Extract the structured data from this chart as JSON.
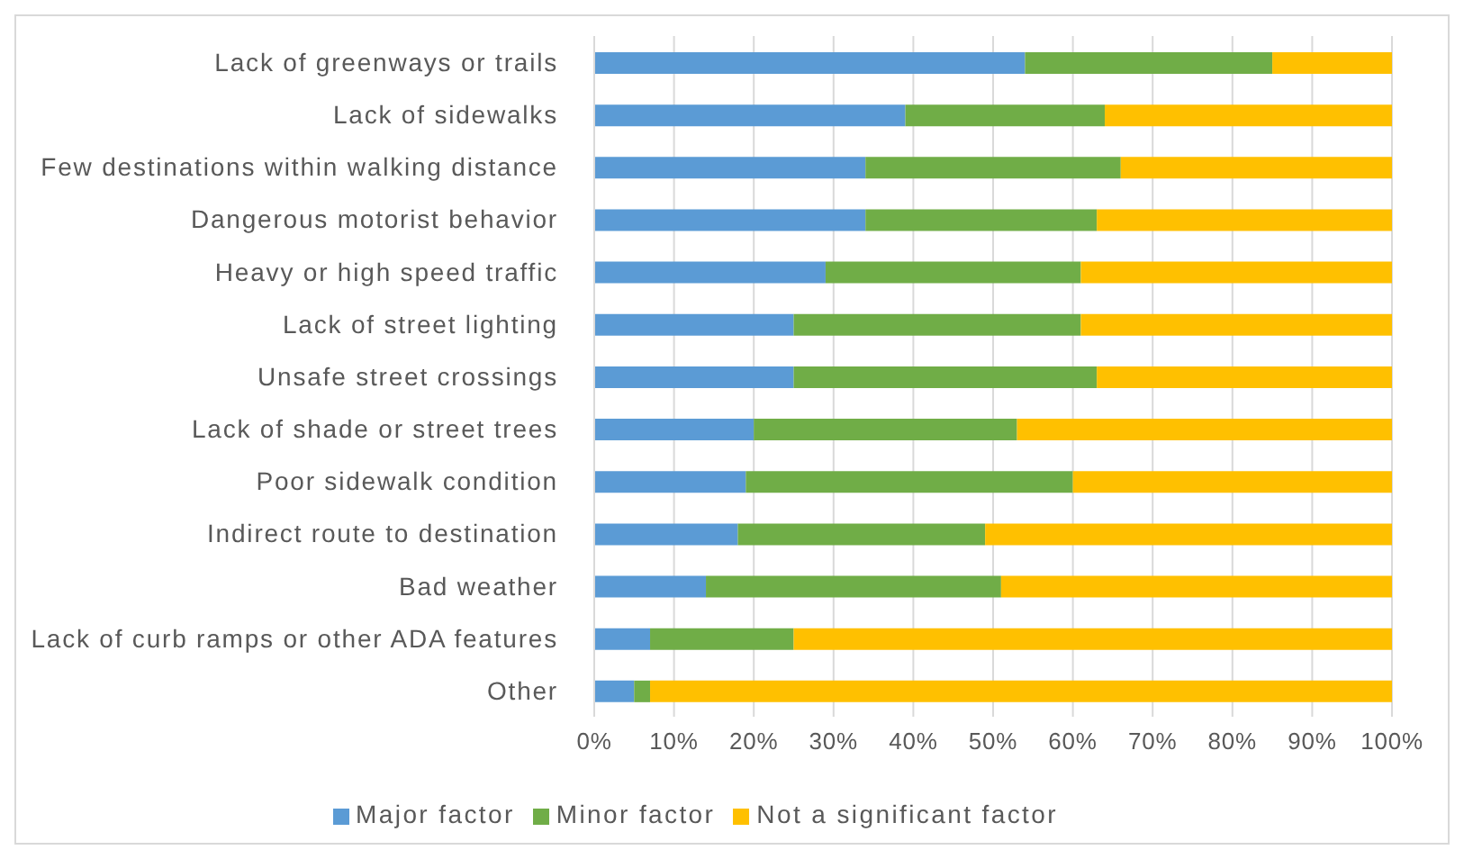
{
  "chart_data": {
    "type": "bar",
    "orientation": "horizontal",
    "stacked": true,
    "categories": [
      "Lack of greenways or trails",
      "Lack of sidewalks",
      "Few destinations within walking distance",
      "Dangerous motorist behavior",
      "Heavy or high speed traffic",
      "Lack of street lighting",
      "Unsafe street crossings",
      "Lack of shade or street trees",
      "Poor sidewalk condition",
      "Indirect route to destination",
      "Bad weather",
      "Lack of curb ramps or other ADA features",
      "Other"
    ],
    "series": [
      {
        "name": "Major factor",
        "color": "#5b9bd5",
        "values": [
          54,
          39,
          34,
          34,
          29,
          25,
          25,
          20,
          19,
          18,
          14,
          7,
          5
        ]
      },
      {
        "name": "Minor factor",
        "color": "#70ad47",
        "values": [
          31,
          25,
          32,
          29,
          32,
          36,
          38,
          33,
          41,
          31,
          37,
          18,
          2
        ]
      },
      {
        "name": "Not a significant factor",
        "color": "#ffc000",
        "values": [
          15,
          36,
          34,
          37,
          39,
          39,
          37,
          47,
          40,
          51,
          49,
          75,
          93
        ]
      }
    ],
    "xlim": [
      0,
      100
    ],
    "xticks": [
      {
        "value": 0,
        "label": "0%"
      },
      {
        "value": 10,
        "label": "10%"
      },
      {
        "value": 20,
        "label": "20%"
      },
      {
        "value": 30,
        "label": "30%"
      },
      {
        "value": 40,
        "label": "40%"
      },
      {
        "value": 50,
        "label": "50%"
      },
      {
        "value": 60,
        "label": "60%"
      },
      {
        "value": 70,
        "label": "70%"
      },
      {
        "value": 80,
        "label": "80%"
      },
      {
        "value": 90,
        "label": "90%"
      },
      {
        "value": 100,
        "label": "100%"
      }
    ],
    "grid": "x",
    "legend": "bottom"
  }
}
